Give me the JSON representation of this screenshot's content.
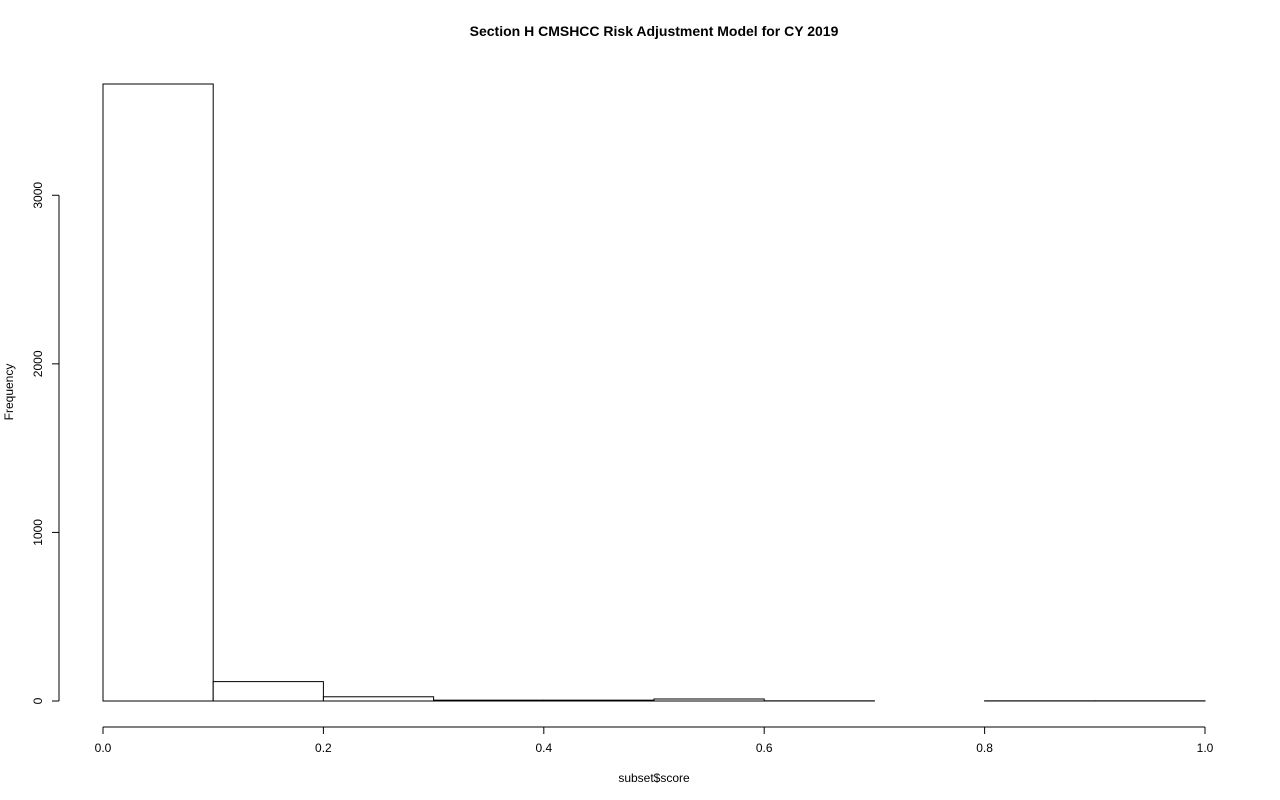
{
  "chart_data": {
    "type": "bar",
    "subtype": "histogram",
    "title": "Section H  CMSHCC Risk Adjustment Model for CY 2019",
    "xlabel": "subset$score",
    "ylabel": "Frequency",
    "bins": [
      {
        "start": 0.0,
        "end": 0.1,
        "count": 3660
      },
      {
        "start": 0.1,
        "end": 0.2,
        "count": 115
      },
      {
        "start": 0.2,
        "end": 0.3,
        "count": 25
      },
      {
        "start": 0.3,
        "end": 0.4,
        "count": 5
      },
      {
        "start": 0.4,
        "end": 0.5,
        "count": 5
      },
      {
        "start": 0.5,
        "end": 0.6,
        "count": 12
      },
      {
        "start": 0.6,
        "end": 0.7,
        "count": 1
      },
      {
        "start": 0.7,
        "end": 0.8,
        "count": 0
      },
      {
        "start": 0.8,
        "end": 0.9,
        "count": 1
      },
      {
        "start": 0.9,
        "end": 1.0,
        "count": 1
      }
    ],
    "xlim": [
      0,
      1
    ],
    "ylim": [
      0,
      3660
    ],
    "x_ticks": [
      "0.0",
      "0.2",
      "0.4",
      "0.6",
      "0.8",
      "1.0"
    ],
    "y_ticks": [
      "0",
      "1000",
      "2000",
      "3000"
    ],
    "grid": false,
    "legend": "none",
    "bar_fill": "#ffffff",
    "bar_stroke": "#000000"
  }
}
